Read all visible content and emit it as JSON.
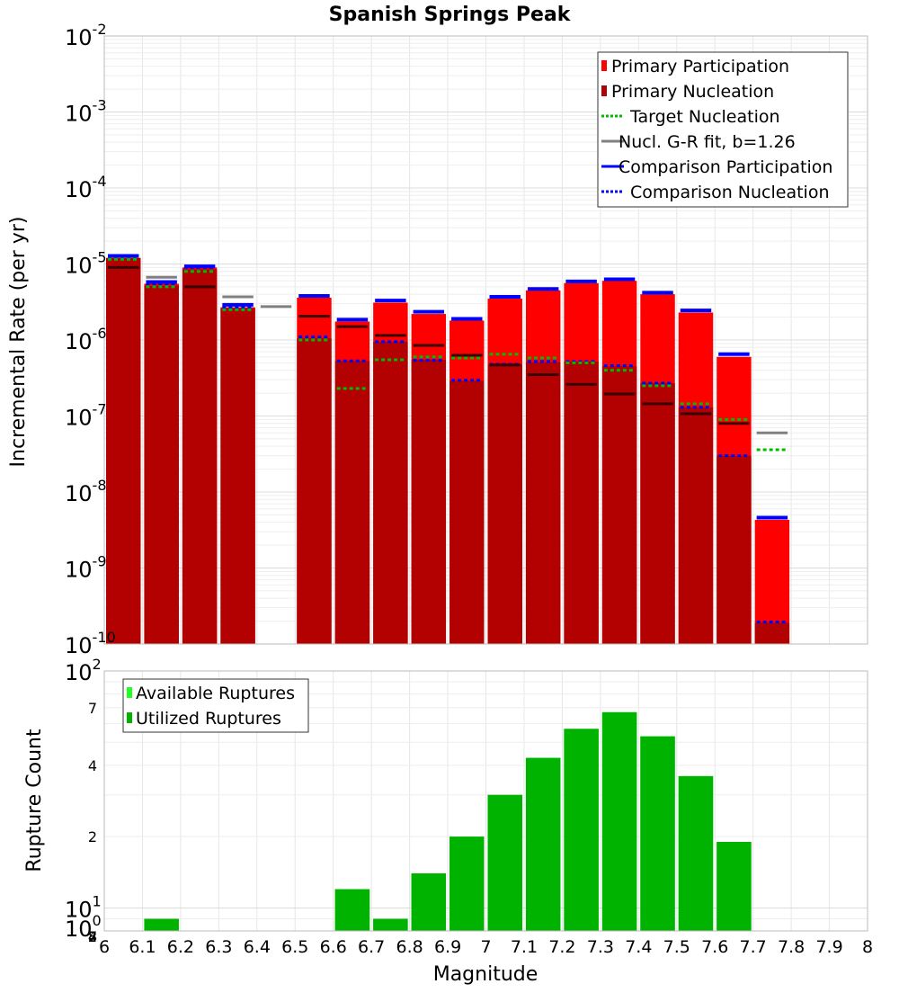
{
  "chart_data": [
    {
      "type": "bar",
      "title": "Spanish Springs Peak",
      "ylabel": "Incremental Rate (per yr)",
      "xlabel": "",
      "xlim": [
        6,
        8
      ],
      "ylim": [
        1e-10,
        0.01
      ],
      "yscale": "log",
      "bin_width": 0.1,
      "grid": true,
      "legend_position": "top-right",
      "series": [
        {
          "name": "Primary Participation",
          "style": "bar",
          "color": "#ff0000",
          "x": [
            6.05,
            6.15,
            6.25,
            6.35,
            6.55,
            6.65,
            6.75,
            6.85,
            6.95,
            7.05,
            7.15,
            7.25,
            7.35,
            7.45,
            7.55,
            7.65,
            7.75
          ],
          "values": [
            1.2e-05,
            5.5e-06,
            9e-06,
            2.7e-06,
            3.6e-06,
            1.75e-06,
            3.1e-06,
            2.2e-06,
            1.8e-06,
            3.5e-06,
            4.5e-06,
            5.6e-06,
            6e-06,
            4e-06,
            2.3e-06,
            6e-07,
            4.3e-09
          ]
        },
        {
          "name": "Primary Nucleation",
          "style": "bar",
          "color": "#b30000",
          "x": [
            6.05,
            6.15,
            6.25,
            6.35,
            6.55,
            6.65,
            6.75,
            6.85,
            6.95,
            7.05,
            7.15,
            7.25,
            7.35,
            7.45,
            7.55,
            7.65,
            7.75
          ],
          "values": [
            1.2e-05,
            5.2e-06,
            8.5e-06,
            2.6e-06,
            1.05e-06,
            5.3e-07,
            9.5e-07,
            5.5e-07,
            2.9e-07,
            4.8e-07,
            5.1e-07,
            5.2e-07,
            4.5e-07,
            2.7e-07,
            1.3e-07,
            3e-08,
            1.9e-10
          ]
        },
        {
          "name": "Target Nucleation",
          "style": "dotted",
          "color": "#00bb00",
          "x": [
            6.05,
            6.15,
            6.25,
            6.35,
            6.55,
            6.65,
            6.75,
            6.85,
            6.95,
            7.05,
            7.15,
            7.25,
            7.35,
            7.45,
            7.55,
            7.65,
            7.75
          ],
          "values": [
            1.15e-05,
            5e-06,
            8e-06,
            2.5e-06,
            1e-06,
            2.3e-07,
            5.5e-07,
            6e-07,
            5.8e-07,
            6.5e-07,
            5.8e-07,
            5e-07,
            4e-07,
            2.5e-07,
            1.45e-07,
            9e-08,
            3.6e-08
          ]
        },
        {
          "name": "Nucl. G-R fit, b=1.26",
          "style": "line",
          "color": "#808080",
          "x": [
            6.05,
            6.15,
            6.25,
            6.35,
            6.45,
            6.55,
            6.65,
            6.75,
            6.85,
            6.95,
            7.05,
            7.15,
            7.25,
            7.35,
            7.45,
            7.55,
            7.65,
            7.75
          ],
          "values": [
            9e-06,
            6.7e-06,
            5e-06,
            3.7e-06,
            2.75e-06,
            2.05e-06,
            1.5e-06,
            1.15e-06,
            8.5e-07,
            6.3e-07,
            4.7e-07,
            3.5e-07,
            2.6e-07,
            1.95e-07,
            1.45e-07,
            1.07e-07,
            8e-08,
            6e-08
          ]
        },
        {
          "name": "Comparison Participation",
          "style": "line",
          "color": "#0000ff",
          "x": [
            6.05,
            6.15,
            6.25,
            6.35,
            6.55,
            6.65,
            6.75,
            6.85,
            6.95,
            7.05,
            7.15,
            7.25,
            7.35,
            7.45,
            7.55,
            7.65,
            7.75
          ],
          "values": [
            1.28e-05,
            5.8e-06,
            9.3e-06,
            2.9e-06,
            3.8e-06,
            1.85e-06,
            3.3e-06,
            2.35e-06,
            1.9e-06,
            3.7e-06,
            4.7e-06,
            5.9e-06,
            6.3e-06,
            4.2e-06,
            2.45e-06,
            6.5e-07,
            4.6e-09
          ]
        },
        {
          "name": "Comparison Nucleation",
          "style": "dotted",
          "color": "#0000ff",
          "x": [
            6.05,
            6.15,
            6.25,
            6.35,
            6.55,
            6.65,
            6.75,
            6.85,
            6.95,
            7.05,
            7.15,
            7.25,
            7.35,
            7.45,
            7.55,
            7.65,
            7.75
          ],
          "values": [
            1.25e-05,
            5.5e-06,
            9e-06,
            2.7e-06,
            1.1e-06,
            5.3e-07,
            9.5e-07,
            5.4e-07,
            2.95e-07,
            4.8e-07,
            5.2e-07,
            5.2e-07,
            4.6e-07,
            2.7e-07,
            1.3e-07,
            3e-08,
            1.95e-10
          ]
        }
      ]
    },
    {
      "type": "bar",
      "title": "",
      "xlabel": "Magnitude",
      "ylabel": "Rupture Count",
      "xlim": [
        6,
        8
      ],
      "ylim": [
        8,
        100
      ],
      "yscale": "log",
      "bin_width": 0.1,
      "grid": true,
      "legend_position": "top-left",
      "series": [
        {
          "name": "Available Ruptures",
          "color": "#22ff22",
          "x": [
            6.15,
            6.65,
            6.75,
            6.85,
            6.95,
            7.05,
            7.15,
            7.25,
            7.35,
            7.45,
            7.55,
            7.65
          ],
          "values": [
            9,
            12,
            9,
            14,
            20,
            30,
            43,
            57,
            67,
            53,
            36,
            19
          ]
        },
        {
          "name": "Utilized Ruptures",
          "color": "#00b300",
          "x": [
            6.15,
            6.65,
            6.75,
            6.85,
            6.95,
            7.05,
            7.15,
            7.25,
            7.35,
            7.45,
            7.55,
            7.65
          ],
          "values": [
            9,
            12,
            9,
            14,
            20,
            30,
            43,
            57,
            67,
            53,
            36,
            19
          ]
        }
      ]
    }
  ],
  "axis_text": {
    "top_ticks": [
      {
        "base": "10",
        "exp": "-2"
      },
      {
        "base": "10",
        "exp": "-3"
      },
      {
        "base": "10",
        "exp": "-4"
      },
      {
        "base": "10",
        "exp": "-5"
      },
      {
        "base": "10",
        "exp": "-6"
      },
      {
        "base": "10",
        "exp": "-7"
      },
      {
        "base": "10",
        "exp": "-8"
      },
      {
        "base": "10",
        "exp": "-9"
      },
      {
        "base": "10",
        "exp": "-10"
      }
    ],
    "bottom_major": [
      {
        "base": "10",
        "exp": "2"
      },
      {
        "base": "10",
        "exp": "1"
      },
      {
        "base": "10",
        "exp": "0"
      }
    ],
    "bottom_minor_labels": [
      "7",
      "4",
      "2",
      "7",
      "4",
      "2",
      "8"
    ],
    "x_ticks": [
      "6",
      "6.1",
      "6.2",
      "6.3",
      "6.4",
      "6.5",
      "6.6",
      "6.7",
      "6.8",
      "6.9",
      "7",
      "7.1",
      "7.2",
      "7.3",
      "7.4",
      "7.5",
      "7.6",
      "7.7",
      "7.8",
      "7.9",
      "8"
    ]
  }
}
